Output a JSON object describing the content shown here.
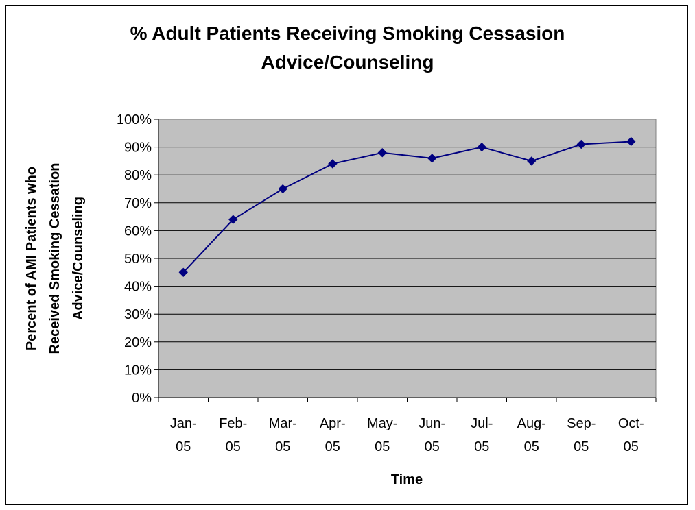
{
  "chart_data": {
    "type": "line",
    "title_line1": "% Adult Patients Receiving Smoking Cessasion",
    "title_line2": "Advice/Counseling",
    "xlabel": "Time",
    "ylabel_line1": "Percent of AMI Patients who",
    "ylabel_line2": "Received Smoking Cessation",
    "ylabel_line3": "Advice/Counseling",
    "categories": [
      [
        "Jan-",
        "05"
      ],
      [
        "Feb-",
        "05"
      ],
      [
        "Mar-",
        "05"
      ],
      [
        "Apr-",
        "05"
      ],
      [
        "May-",
        "05"
      ],
      [
        "Jun-",
        "05"
      ],
      [
        "Jul-",
        "05"
      ],
      [
        "Aug-",
        "05"
      ],
      [
        "Sep-",
        "05"
      ],
      [
        "Oct-",
        "05"
      ]
    ],
    "values": [
      45,
      64,
      75,
      84,
      88,
      86,
      90,
      85,
      91,
      92
    ],
    "ylim": [
      0,
      100
    ],
    "yticks": [
      "0%",
      "10%",
      "20%",
      "30%",
      "40%",
      "50%",
      "60%",
      "70%",
      "80%",
      "90%",
      "100%"
    ],
    "grid": true,
    "colors": {
      "plot_bg": "#c0c0c0",
      "line": "#000080",
      "marker": "#000080",
      "grid": "#000000"
    }
  }
}
